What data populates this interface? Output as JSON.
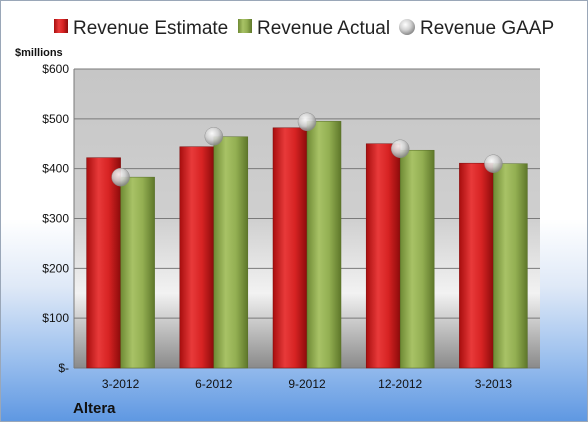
{
  "chart_data": {
    "type": "bar",
    "title": "",
    "ylabel": "$millions",
    "xlabel": "",
    "footer_label": "Altera",
    "categories": [
      "3-2012",
      "6-2012",
      "9-2012",
      "12-2012",
      "3-2013"
    ],
    "series": [
      {
        "name": "Revenue Estimate",
        "type": "bar",
        "color": "#cc1f1f",
        "values": [
          422,
          444,
          482,
          450,
          411
        ]
      },
      {
        "name": "Revenue Actual",
        "type": "bar",
        "color": "#8faa4f",
        "values": [
          383,
          464,
          495,
          437,
          410
        ]
      },
      {
        "name": "Revenue GAAP",
        "type": "scatter",
        "color": "#c0c0c0",
        "values": [
          383,
          465,
          494,
          440,
          410
        ]
      }
    ],
    "ylim": [
      0,
      600
    ],
    "yticks": [
      0,
      100,
      200,
      300,
      400,
      500,
      600
    ],
    "ytick_labels": [
      "$-",
      "$100",
      "$200",
      "$300",
      "$400",
      "$500",
      "$600"
    ],
    "grid": true,
    "legend_position": "top"
  }
}
